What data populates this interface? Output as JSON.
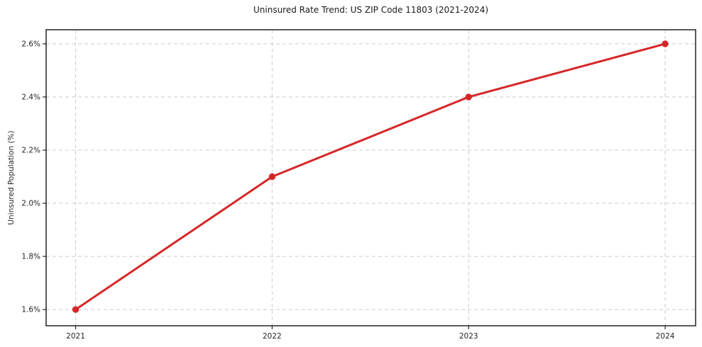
{
  "chart_data": {
    "type": "line",
    "title": "Uninsured Rate Trend: US ZIP Code 11803 (2021-2024)",
    "xlabel": "",
    "ylabel": "Uninsured Population (%)",
    "x": [
      2021,
      2022,
      2023,
      2024
    ],
    "values": [
      1.6,
      2.1,
      2.4,
      2.6
    ],
    "xtick_labels": [
      "2021",
      "2022",
      "2023",
      "2024"
    ],
    "ytick_values": [
      1.6,
      1.8,
      2.0,
      2.2,
      2.4,
      2.6
    ],
    "ytick_labels": [
      "1.6%",
      "1.8%",
      "2.0%",
      "2.2%",
      "2.4%",
      "2.6%"
    ],
    "xlim": [
      2020.85,
      2024.155
    ],
    "ylim": [
      1.539,
      2.653
    ],
    "grid": true,
    "grid_style": "dashed",
    "legend": false,
    "line_color": "#d62728",
    "marker": "circle",
    "grid_color": "#cccccc",
    "frame_color": "#000000",
    "tick_color": "#262626",
    "background": "#ffffff"
  }
}
